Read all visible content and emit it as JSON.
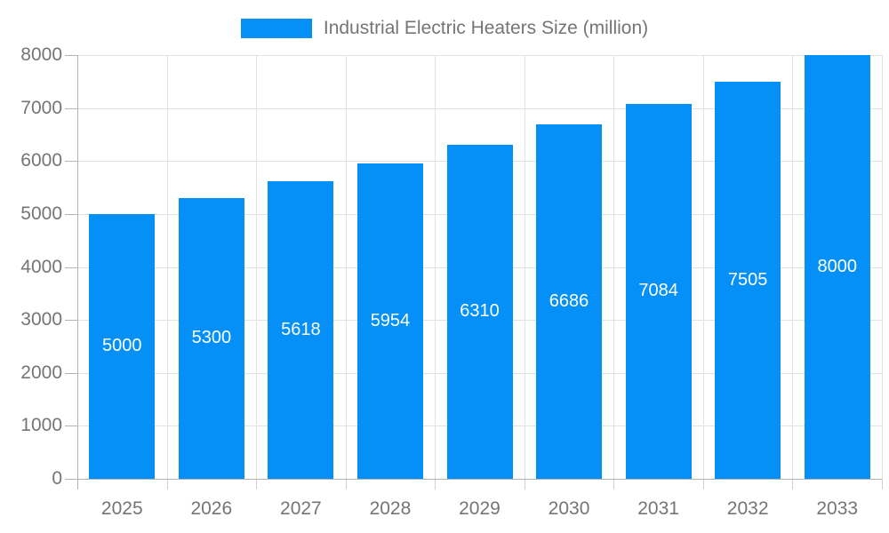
{
  "chart_data": {
    "type": "bar",
    "title": "Industrial Electric Heaters Size (million)",
    "categories": [
      "2025",
      "2026",
      "2027",
      "2028",
      "2029",
      "2030",
      "2031",
      "2032",
      "2033"
    ],
    "values": [
      5000,
      5300,
      5618,
      5954,
      6310,
      6686,
      7084,
      7505,
      8000
    ],
    "value_labels": [
      "5000",
      "5300",
      "5618",
      "5954",
      "6310",
      "6686",
      "7084",
      "7505",
      "8000"
    ],
    "xlabel": "",
    "ylabel": "",
    "ylim": [
      0,
      8000
    ],
    "ytick_step": 1000,
    "ytick_labels": [
      "0",
      "1000",
      "2000",
      "3000",
      "4000",
      "5000",
      "6000",
      "7000",
      "8000"
    ],
    "grid": true,
    "legend_position": "top-center",
    "colors": {
      "bar": "#0590f8",
      "value_label": "#ffffff",
      "grid": "#e2e2e2",
      "axis": "#b3b3b3",
      "tick_label": "#757575",
      "background": "#ffffff"
    }
  }
}
